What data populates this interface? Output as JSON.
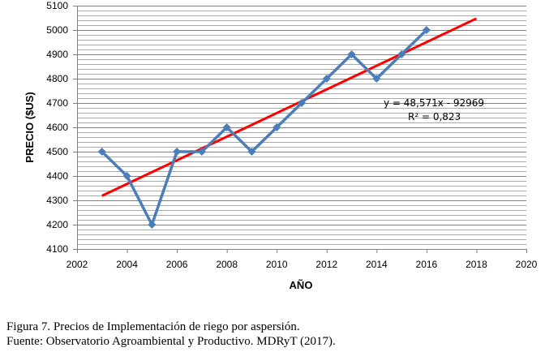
{
  "chart_data": {
    "type": "line",
    "title": "",
    "xlabel": "AÑO",
    "ylabel": "PRECIO ($US)",
    "xlim": [
      2002,
      2020
    ],
    "ylim": [
      4100,
      5100
    ],
    "x_ticks": [
      2002,
      2004,
      2006,
      2008,
      2010,
      2012,
      2014,
      2016,
      2018,
      2020
    ],
    "y_ticks": [
      4100,
      4200,
      4300,
      4400,
      4500,
      4600,
      4700,
      4800,
      4900,
      5000,
      5100
    ],
    "y_minor_step": 20,
    "grid": true,
    "series": [
      {
        "name": "Precio",
        "color": "#4a7ebb",
        "x": [
          2003,
          2004,
          2005,
          2006,
          2007,
          2008,
          2009,
          2010,
          2011,
          2012,
          2013,
          2014,
          2015,
          2016
        ],
        "y": [
          4500,
          4400,
          4200,
          4500,
          4500,
          4600,
          4500,
          4600,
          4700,
          4800,
          4900,
          4800,
          4900,
          5000
        ]
      }
    ],
    "trendline": {
      "type": "linear",
      "color": "#ff0000",
      "slope": 48.571,
      "intercept": -92969,
      "x_range": [
        2003,
        2018
      ],
      "equation_label": "y = 48,571x - 92969",
      "r2_label": "R² = 0,823"
    }
  },
  "caption": {
    "figure": "Figura  7. Precios de Implementación  de riego por aspersión.",
    "source": "Fuente:  Observatorio Agroambiental y Productivo.  MDRyT (2017)."
  }
}
